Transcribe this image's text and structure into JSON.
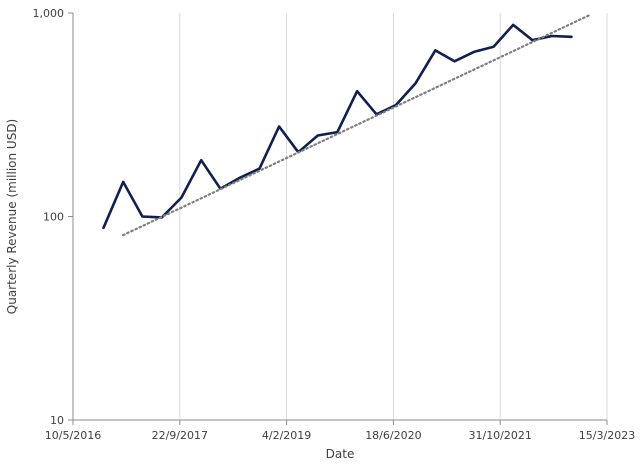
{
  "chart_data": {
    "type": "line",
    "xlabel": "Date",
    "ylabel": "Quarterly Revenue (million USD)",
    "y_scale": "log",
    "ylim": [
      10,
      1000
    ],
    "xlim": [
      "2016-05-10",
      "2023-03-15"
    ],
    "x_ticks": [
      {
        "date": "2016-05-10",
        "label": "10/5/2016"
      },
      {
        "date": "2017-09-22",
        "label": "22/9/2017"
      },
      {
        "date": "2019-02-04",
        "label": "4/2/2019"
      },
      {
        "date": "2020-06-18",
        "label": "18/6/2020"
      },
      {
        "date": "2021-10-31",
        "label": "31/10/2021"
      },
      {
        "date": "2023-03-15",
        "label": "15/3/2023"
      }
    ],
    "y_ticks": [
      {
        "value": 10,
        "label": "10"
      },
      {
        "value": 100,
        "label": "100"
      },
      {
        "value": 1000,
        "label": "1,000"
      }
    ],
    "grid": "vertical",
    "series": [
      {
        "name": "",
        "color": "#0f1f4f",
        "style": "solid",
        "points": [
          {
            "x": "2016-09-30",
            "y": 88
          },
          {
            "x": "2016-12-31",
            "y": 148
          },
          {
            "x": "2017-03-31",
            "y": 100
          },
          {
            "x": "2017-06-30",
            "y": 99
          },
          {
            "x": "2017-09-30",
            "y": 124
          },
          {
            "x": "2017-12-31",
            "y": 189
          },
          {
            "x": "2018-03-31",
            "y": 137
          },
          {
            "x": "2018-06-30",
            "y": 155
          },
          {
            "x": "2018-09-30",
            "y": 172
          },
          {
            "x": "2018-12-31",
            "y": 277
          },
          {
            "x": "2019-03-31",
            "y": 207
          },
          {
            "x": "2019-06-30",
            "y": 250
          },
          {
            "x": "2019-09-30",
            "y": 260
          },
          {
            "x": "2019-12-31",
            "y": 413
          },
          {
            "x": "2020-03-31",
            "y": 318
          },
          {
            "x": "2020-06-30",
            "y": 353
          },
          {
            "x": "2020-09-30",
            "y": 452
          },
          {
            "x": "2020-12-31",
            "y": 655
          },
          {
            "x": "2021-03-31",
            "y": 579
          },
          {
            "x": "2021-06-30",
            "y": 644
          },
          {
            "x": "2021-09-30",
            "y": 682
          },
          {
            "x": "2021-12-31",
            "y": 874
          },
          {
            "x": "2022-03-31",
            "y": 735
          },
          {
            "x": "2022-06-30",
            "y": 771
          },
          {
            "x": "2022-09-30",
            "y": 764
          }
        ]
      },
      {
        "name": "",
        "color": "#808080",
        "style": "dotted",
        "points": [
          {
            "x": "2016-12-31",
            "y": 81
          },
          {
            "x": "2022-12-31",
            "y": 985
          }
        ]
      }
    ]
  }
}
